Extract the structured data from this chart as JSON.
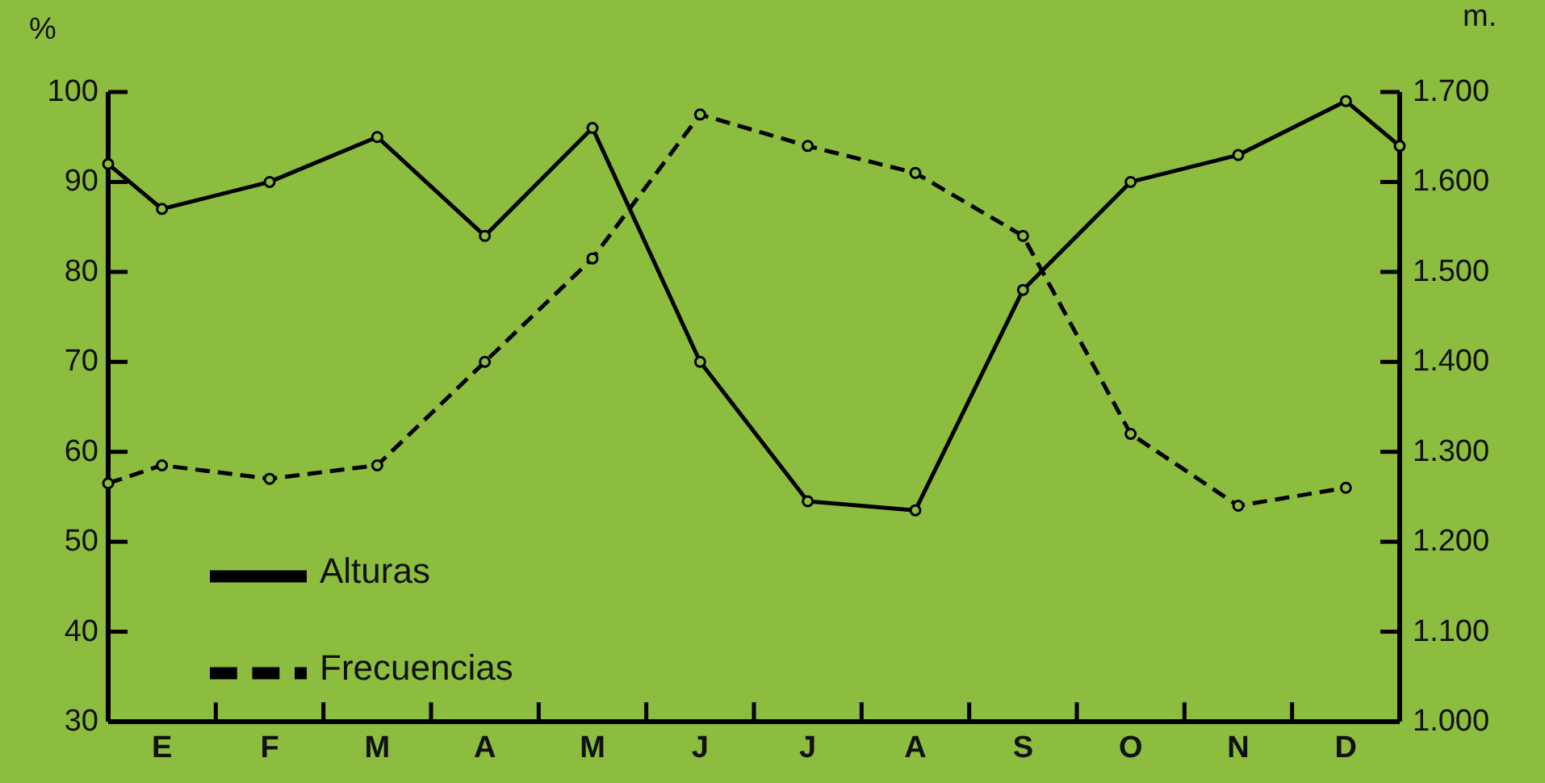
{
  "chart_data": {
    "type": "line",
    "ylabel": "%",
    "y2label": "m.",
    "categories": [
      null,
      "E",
      null,
      "F",
      null,
      "M",
      null,
      "A",
      null,
      "M",
      null,
      "J",
      null,
      "J",
      null,
      "A",
      null,
      "S",
      null,
      "O",
      null,
      "N",
      null,
      "D",
      null
    ],
    "ylim": [
      30,
      100
    ],
    "yticks": [
      30,
      40,
      50,
      60,
      70,
      80,
      90,
      100
    ],
    "y2lim": [
      1000,
      1700
    ],
    "y2ticks": [
      {
        "value": 1000,
        "label": "1.000"
      },
      {
        "value": 1100,
        "label": "1.100"
      },
      {
        "value": 1200,
        "label": "1.200"
      },
      {
        "value": 1300,
        "label": "1.300"
      },
      {
        "value": 1400,
        "label": "1.400"
      },
      {
        "value": 1500,
        "label": "1.500"
      },
      {
        "value": 1600,
        "label": "1.600"
      },
      {
        "value": 1700,
        "label": "1.700"
      }
    ],
    "grid": false,
    "legend": "bottom left",
    "marker": "circle",
    "series": [
      {
        "name": "Alturas",
        "color": "#000000",
        "axis": "y2",
        "line_style": "solid",
        "values": [
          1620,
          1570,
          null,
          1600,
          null,
          1650,
          null,
          1540,
          null,
          1660,
          null,
          1400,
          null,
          1245,
          null,
          1235,
          null,
          1480,
          null,
          1600,
          null,
          1630,
          null,
          1690,
          1640
        ]
      },
      {
        "name": "Frecuencias",
        "color": "#000000",
        "axis": "y",
        "line_style": "dashed",
        "values": [
          56.5,
          58.5,
          null,
          57,
          null,
          58.5,
          null,
          70,
          null,
          81.5,
          null,
          97.5,
          null,
          94,
          null,
          91,
          null,
          84,
          null,
          62,
          null,
          54,
          null,
          56,
          null
        ]
      }
    ]
  }
}
